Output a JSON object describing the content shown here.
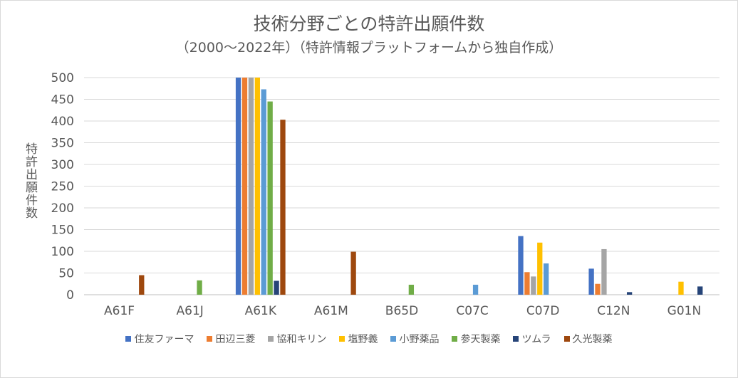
{
  "chart_data": {
    "type": "bar",
    "title": "技術分野ごとの特許出願件数",
    "subtitle": "（2000～2022年）（特許情報プラットフォームから独自作成）",
    "xlabel": "",
    "ylabel": "特許出願件数",
    "ylim": [
      0,
      500
    ],
    "yticks": [
      0,
      50,
      100,
      150,
      200,
      250,
      300,
      350,
      400,
      450,
      500
    ],
    "grid": true,
    "legend_position": "bottom",
    "categories": [
      "A61F",
      "A61J",
      "A61K",
      "A61M",
      "B65D",
      "C07C",
      "C07D",
      "C12N",
      "G01N"
    ],
    "series": [
      {
        "name": "住友ファーマ",
        "color": "#4472C4",
        "values": [
          0,
          0,
          500,
          0,
          0,
          0,
          135,
          60,
          0
        ]
      },
      {
        "name": "田辺三菱",
        "color": "#ED7D31",
        "values": [
          0,
          0,
          500,
          0,
          0,
          0,
          52,
          25,
          0
        ]
      },
      {
        "name": "協和キリン",
        "color": "#A5A5A5",
        "values": [
          0,
          0,
          500,
          0,
          0,
          0,
          42,
          105,
          0
        ]
      },
      {
        "name": "塩野義",
        "color": "#FFC000",
        "values": [
          0,
          0,
          500,
          0,
          0,
          0,
          120,
          0,
          30
        ]
      },
      {
        "name": "小野薬品",
        "color": "#5B9BD5",
        "values": [
          0,
          0,
          473,
          0,
          0,
          23,
          72,
          0,
          0
        ]
      },
      {
        "name": "参天製薬",
        "color": "#70AD47",
        "values": [
          0,
          33,
          445,
          0,
          23,
          0,
          0,
          0,
          0
        ]
      },
      {
        "name": "ツムラ",
        "color": "#264478",
        "values": [
          0,
          0,
          32,
          0,
          0,
          0,
          0,
          6,
          19
        ]
      },
      {
        "name": "久光製薬",
        "color": "#9E480E",
        "values": [
          45,
          0,
          403,
          99,
          0,
          0,
          0,
          0,
          0
        ]
      }
    ]
  }
}
